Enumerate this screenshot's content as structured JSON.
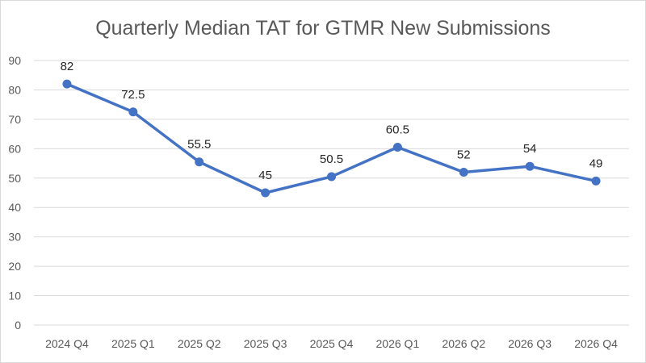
{
  "chart_data": {
    "type": "line",
    "title": "Quarterly Median TAT for GTMR New Submissions",
    "xlabel": "",
    "ylabel": "",
    "categories": [
      "2024 Q4",
      "2025 Q1",
      "2025 Q2",
      "2025 Q3",
      "2025 Q4",
      "2026 Q1",
      "2026 Q2",
      "2026 Q3",
      "2026 Q4"
    ],
    "series": [
      {
        "values": [
          82,
          72.5,
          55.5,
          45,
          50.5,
          60.5,
          52,
          54,
          49
        ],
        "color": "#4472c4"
      }
    ],
    "ylim": [
      0,
      90
    ],
    "yticks": [
      0,
      10,
      20,
      30,
      40,
      50,
      60,
      70,
      80,
      90
    ],
    "grid": true,
    "legend": "none",
    "data_labels": true
  }
}
